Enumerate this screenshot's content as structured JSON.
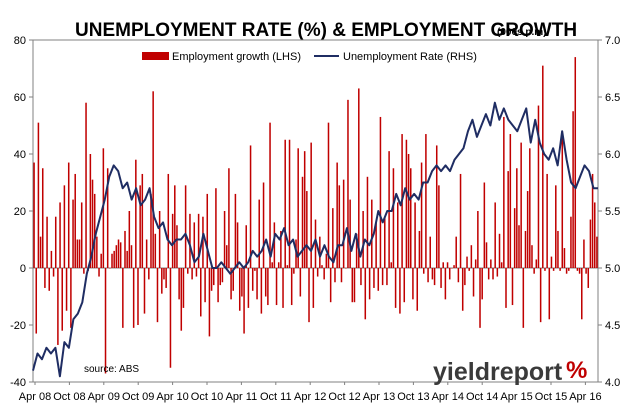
{
  "chart_data": {
    "type": "bar",
    "title": "UNEMPLOYMENT RATE (%) & EMPLOYMENT GROWTH",
    "subtitle": "(000s p.m)",
    "x_tick_labels": [
      "Apr 08",
      "Oct 08",
      "Apr 09",
      "Oct 09",
      "Apr 10",
      "Oct 10",
      "Apr 11",
      "Oct 11",
      "Apr 12",
      "Oct 12",
      "Apr 13",
      "Oct 13",
      "Apr 14",
      "Oct 14",
      "Apr 15",
      "Oct 15",
      "Apr 16"
    ],
    "y_left": {
      "min": -40,
      "max": 80,
      "ticks": [
        "-40",
        "-20",
        "0",
        "20",
        "40",
        "60",
        "80"
      ]
    },
    "y_right": {
      "min": 4.0,
      "max": 7.0,
      "ticks": [
        "4.0",
        "4.5",
        "5.0",
        "5.5",
        "6.0",
        "6.5",
        "7.0"
      ]
    },
    "grid": false,
    "legend_position": "top-center",
    "series": [
      {
        "name": "Employment growth (LHS)",
        "type": "bar",
        "axis": "left",
        "color": "#c00000",
        "values": [
          37,
          -23,
          51,
          11,
          35,
          -7,
          18,
          -8,
          6,
          -3,
          18,
          -27,
          23,
          -22,
          29,
          -15,
          37,
          -21,
          24,
          33,
          10,
          10,
          23,
          -2,
          58,
          -1,
          40,
          31,
          26,
          11,
          -3,
          5,
          42,
          -37,
          35,
          0,
          5,
          6,
          8,
          10,
          9,
          -21,
          13,
          6,
          20,
          8,
          -21,
          38,
          -20,
          29,
          33,
          -16,
          10,
          -4,
          26,
          62,
          12,
          -19,
          20,
          -9,
          -4,
          -7,
          33,
          -35,
          19,
          29,
          15,
          -11,
          -22,
          -14,
          29,
          -2,
          19,
          -4,
          16,
          -3,
          19,
          -17,
          18,
          -12,
          26,
          -24,
          -8,
          -6,
          28,
          -12,
          -6,
          -5,
          20,
          8,
          35,
          -11,
          -8,
          26,
          16,
          -15,
          -10,
          -23,
          15,
          -14,
          43,
          -8,
          -1,
          -11,
          24,
          -16,
          30,
          -10,
          -13,
          51,
          2,
          16,
          -13,
          2,
          13,
          -14,
          45,
          1,
          45,
          -13,
          -2,
          10,
          42,
          -10,
          32,
          41,
          27,
          -19,
          44,
          -14,
          17,
          -3,
          11,
          1,
          -4,
          5,
          51,
          -12,
          21,
          -5,
          37,
          29,
          -5,
          31,
          0,
          59,
          24,
          -12,
          -12,
          12,
          63,
          -6,
          20,
          -18,
          32,
          -11,
          24,
          -7,
          16,
          -8,
          53,
          -6,
          18,
          -6,
          41,
          2,
          35,
          -14,
          23,
          -16,
          47,
          -12,
          45,
          40,
          35,
          -11,
          23,
          -15,
          13,
          37,
          -2,
          47,
          -5,
          11,
          -4,
          -6,
          43,
          29,
          -7,
          2,
          -11,
          2,
          -4,
          0,
          1,
          11,
          -5,
          33,
          -15,
          -6,
          4,
          -1,
          8,
          -10,
          3,
          20,
          -21,
          -11,
          30,
          9,
          -4,
          3,
          -4,
          23,
          -3,
          12,
          2,
          53,
          -14,
          34,
          47,
          -13,
          21,
          35,
          15,
          44,
          -21,
          13,
          27,
          42,
          8,
          -2,
          3,
          57,
          -19,
          71,
          -1,
          33,
          -18,
          4,
          -1,
          29,
          13,
          -1,
          48,
          7,
          -2,
          -1,
          18,
          55,
          74,
          -1,
          -2,
          -18,
          10,
          -2,
          -7,
          17,
          33,
          23,
          11
        ]
      },
      {
        "name": "Unemployment Rate (RHS)",
        "type": "line",
        "axis": "right",
        "color": "#1f2d63",
        "values": [
          4.1,
          4.25,
          4.2,
          4.3,
          4.25,
          4.3,
          4.05,
          4.35,
          4.3,
          4.55,
          4.6,
          4.7,
          4.95,
          5.1,
          5.3,
          5.45,
          5.6,
          5.8,
          5.9,
          5.85,
          5.7,
          5.75,
          5.6,
          5.7,
          5.55,
          5.6,
          5.7,
          5.45,
          5.35,
          5.4,
          5.25,
          5.2,
          5.25,
          5.25,
          5.3,
          5.2,
          5.05,
          5.1,
          5.3,
          5.15,
          5.0,
          5.0,
          5.05,
          5.0,
          4.95,
          5.0,
          5.05,
          5.0,
          5.05,
          5.15,
          5.1,
          5.15,
          5.25,
          5.1,
          5.3,
          5.25,
          5.35,
          5.2,
          5.25,
          5.1,
          5.15,
          5.2,
          5.15,
          5.25,
          5.1,
          5.2,
          5.1,
          5.05,
          5.2,
          5.2,
          5.35,
          5.15,
          5.3,
          5.1,
          5.25,
          5.2,
          5.3,
          5.5,
          5.4,
          5.5,
          5.5,
          5.65,
          5.55,
          5.7,
          5.6,
          5.65,
          5.6,
          5.75,
          5.75,
          5.85,
          5.9,
          5.85,
          5.9,
          5.85,
          5.95,
          6.0,
          6.05,
          6.2,
          6.3,
          6.15,
          6.25,
          6.35,
          6.25,
          6.45,
          6.3,
          6.4,
          6.3,
          6.25,
          6.2,
          6.3,
          6.4,
          6.1,
          6.3,
          6.1,
          6.0,
          5.95,
          6.05,
          5.9,
          6.2,
          5.95,
          5.75,
          5.7,
          5.8,
          5.9,
          5.85,
          5.7,
          5.7
        ]
      }
    ],
    "annotations": {
      "source": "source: ABS"
    }
  },
  "brand": {
    "text": "yieldreport",
    "mark": "%"
  },
  "colors": {
    "bar": "#c00000",
    "line": "#1f2d63",
    "brand_red": "#c00000",
    "brand_text": "#3a3a3a",
    "axis": "#808080"
  }
}
